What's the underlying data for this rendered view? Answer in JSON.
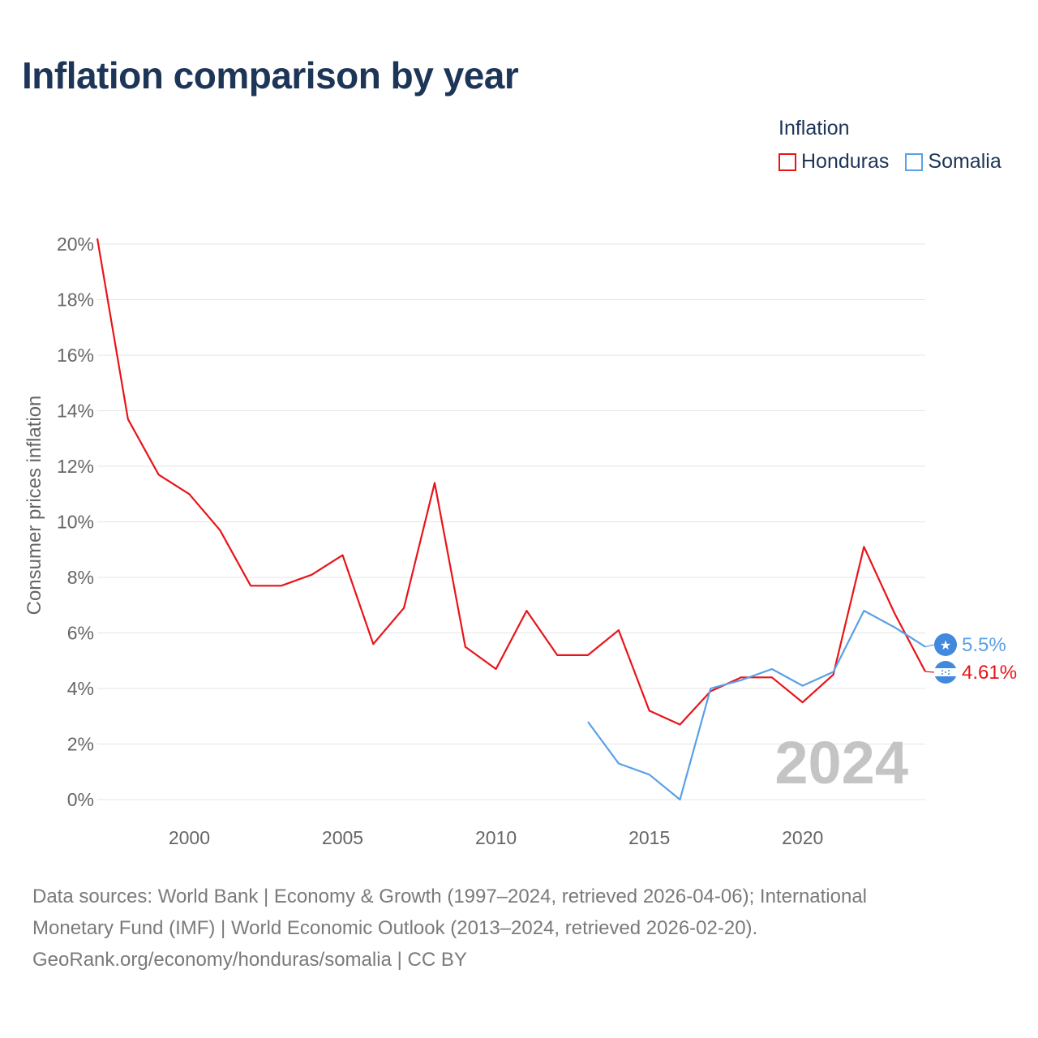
{
  "title": "Inflation comparison by year",
  "legend": {
    "title": "Inflation",
    "items": [
      {
        "label": "Honduras",
        "color": "#e8141a"
      },
      {
        "label": "Somalia",
        "color": "#5aa0e6"
      }
    ]
  },
  "chart_data": {
    "type": "line",
    "title": "Inflation comparison by year",
    "xlabel": "",
    "ylabel": "Consumer prices inflation",
    "xlim": [
      1997,
      2024
    ],
    "ylim": [
      0,
      20
    ],
    "xticks": [
      2000,
      2005,
      2010,
      2015,
      2020
    ],
    "yticks": [
      0,
      2,
      4,
      6,
      8,
      10,
      12,
      14,
      16,
      18,
      20
    ],
    "ytick_labels": [
      "0%",
      "2%",
      "4%",
      "6%",
      "8%",
      "10%",
      "12%",
      "14%",
      "16%",
      "18%",
      "20%"
    ],
    "year_label": "2024",
    "series": [
      {
        "name": "Honduras",
        "color": "#e8141a",
        "x": [
          1997,
          1998,
          1999,
          2000,
          2001,
          2002,
          2003,
          2004,
          2005,
          2006,
          2007,
          2008,
          2009,
          2010,
          2011,
          2012,
          2013,
          2014,
          2015,
          2016,
          2017,
          2018,
          2019,
          2020,
          2021,
          2022,
          2023,
          2024
        ],
        "values": [
          20.2,
          13.7,
          11.7,
          11.0,
          9.7,
          7.7,
          7.7,
          8.1,
          8.8,
          5.6,
          6.9,
          11.4,
          5.5,
          4.7,
          6.8,
          5.2,
          5.2,
          6.1,
          3.2,
          2.7,
          3.9,
          4.4,
          4.4,
          3.5,
          4.5,
          9.1,
          6.7,
          4.61
        ],
        "end_label": "4.61%"
      },
      {
        "name": "Somalia",
        "color": "#5aa0e6",
        "x": [
          2013,
          2014,
          2015,
          2016,
          2017,
          2018,
          2019,
          2020,
          2021,
          2022,
          2023,
          2024
        ],
        "values": [
          2.8,
          1.3,
          0.9,
          0.0,
          4.0,
          4.3,
          4.7,
          4.1,
          4.6,
          6.8,
          6.2,
          5.5
        ],
        "end_label": "5.5%"
      }
    ]
  },
  "footer": {
    "line1": "Data sources: World Bank | Economy & Growth (1997–2024, retrieved 2026-04-06); International",
    "line2": "Monetary Fund (IMF) | World Economic Outlook (2013–2024, retrieved 2026-02-20).",
    "line3": "GeoRank.org/economy/honduras/somalia | CC BY"
  }
}
